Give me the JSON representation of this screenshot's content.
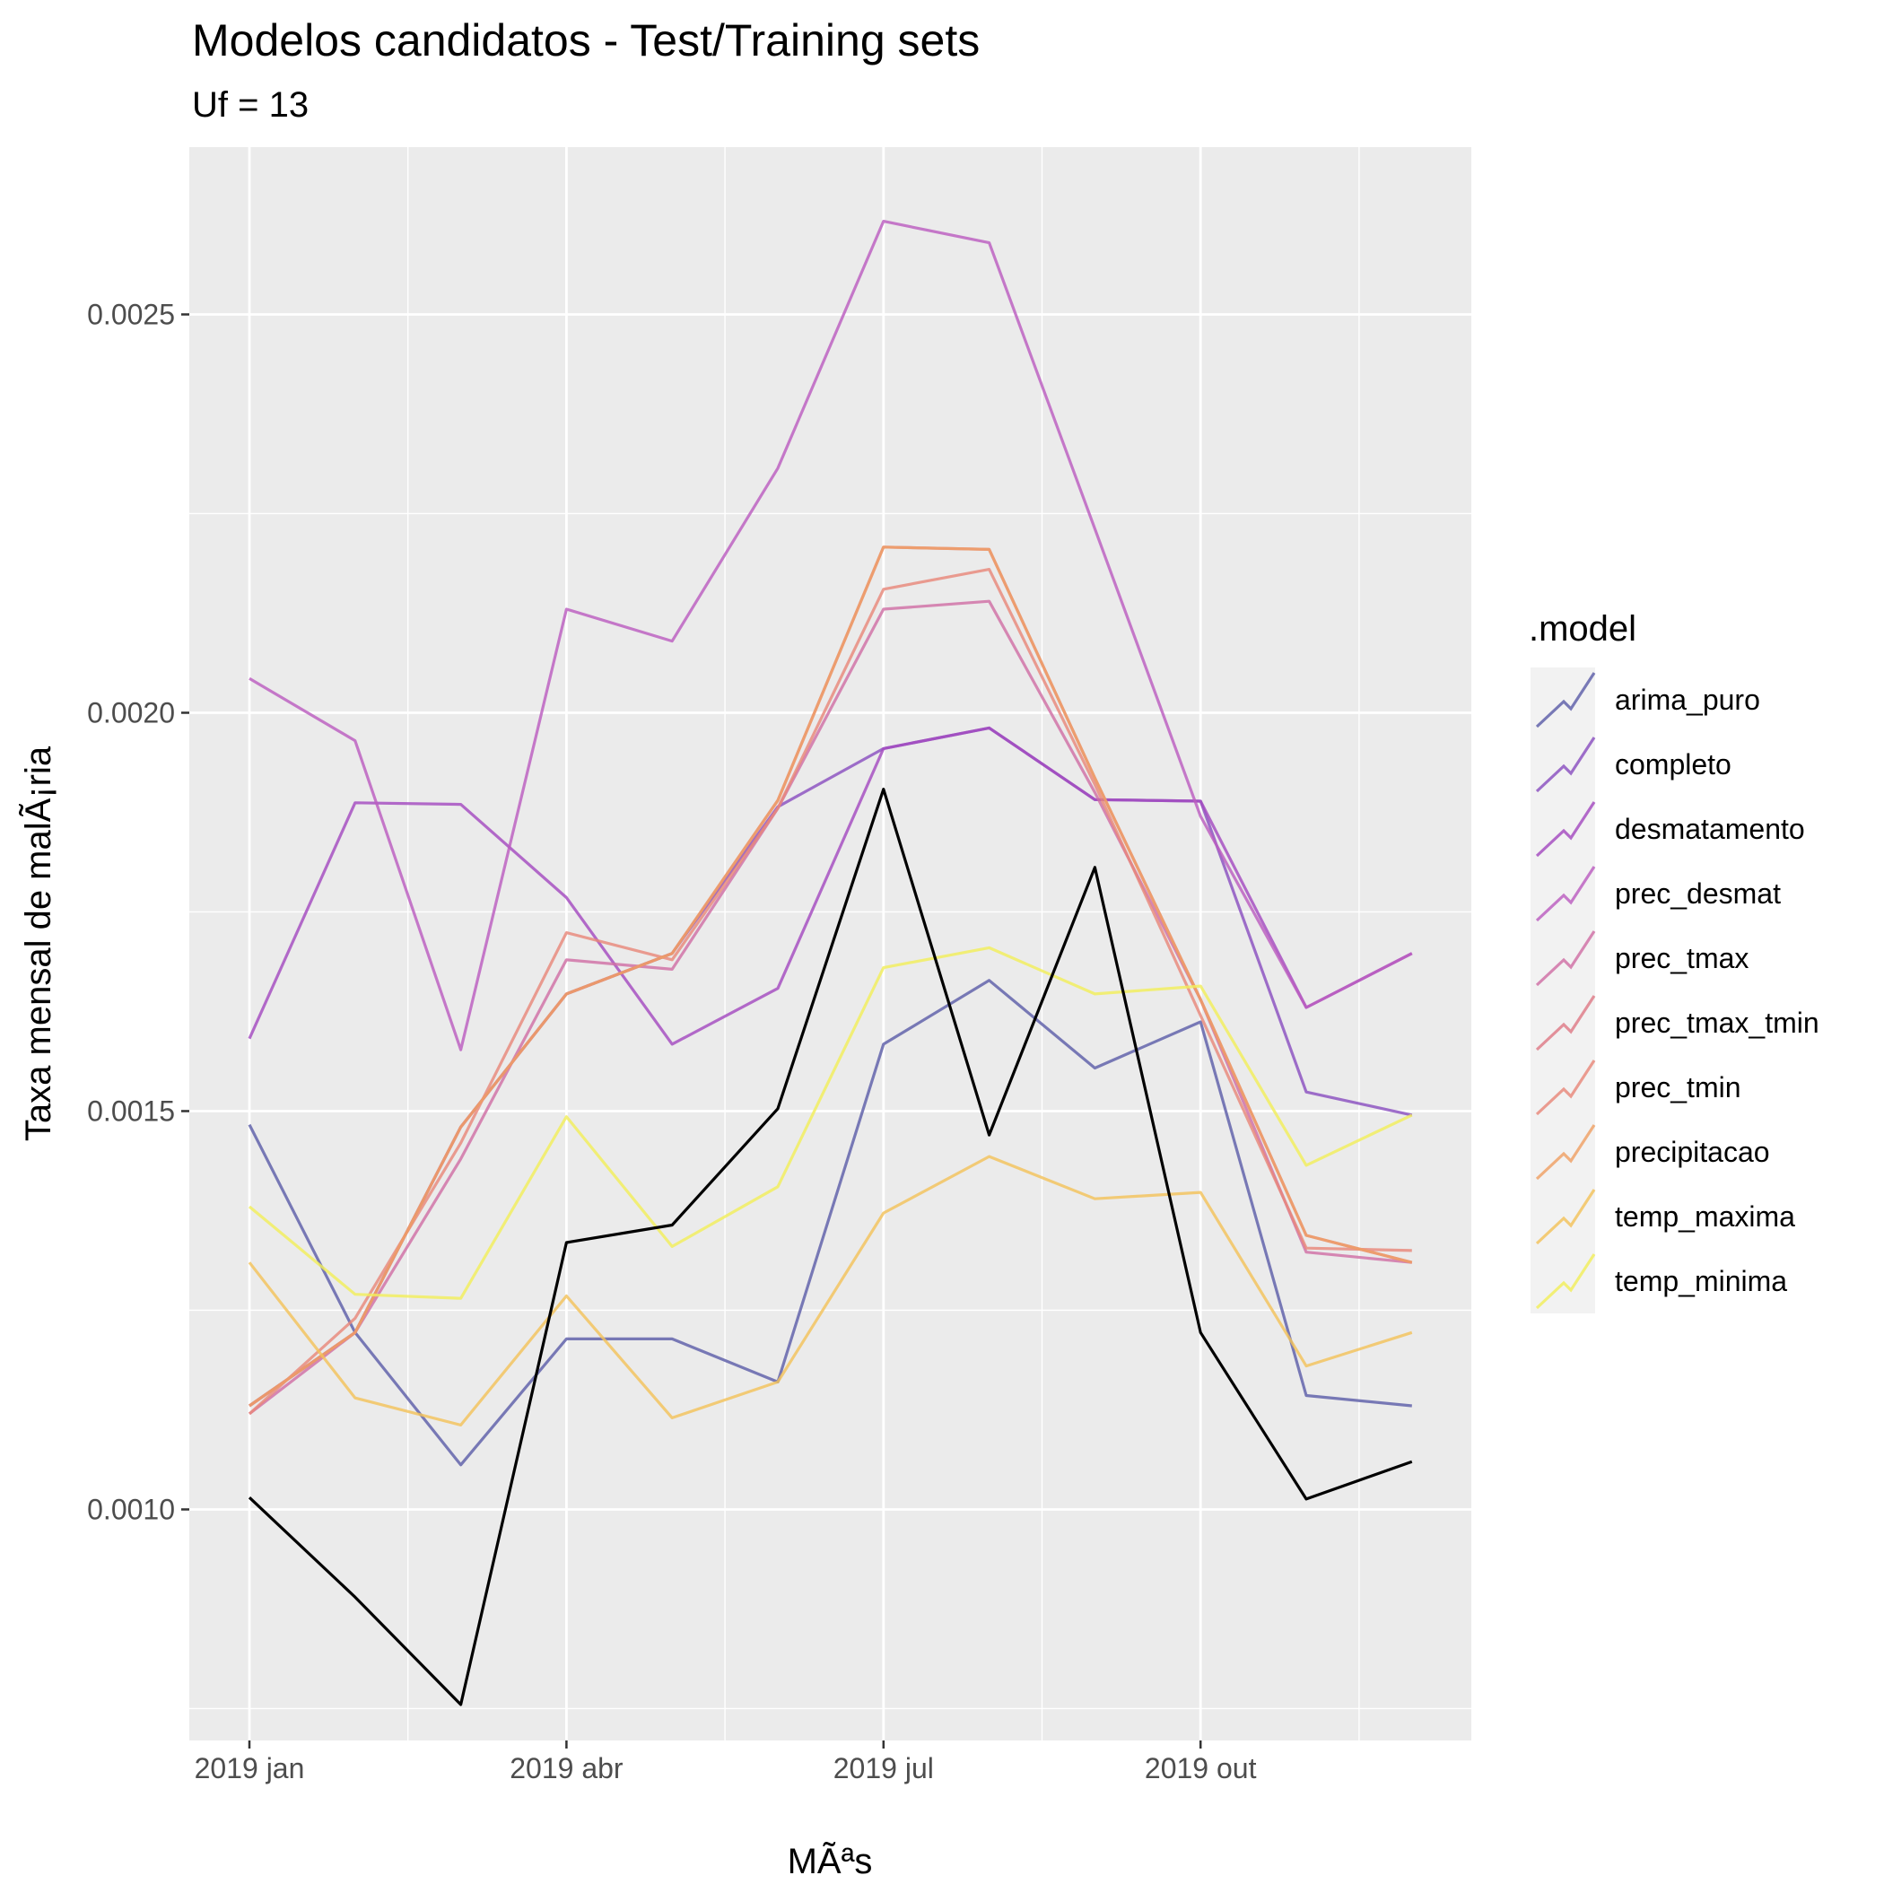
{
  "chart_data": {
    "type": "line",
    "title": "Modelos candidatos - Test/Training sets",
    "subtitle": "Uf = 13",
    "xlabel": "MÃªs",
    "ylabel": "Taxa mensal de malÃ¡ria",
    "x": [
      "2019-01",
      "2019-02",
      "2019-03",
      "2019-04",
      "2019-05",
      "2019-06",
      "2019-07",
      "2019-08",
      "2019-09",
      "2019-10",
      "2019-11",
      "2019-12"
    ],
    "x_ticks": [
      "2019 jan",
      "2019 abr",
      "2019 jul",
      "2019 out"
    ],
    "y_ticks": [
      "0.0010",
      "0.0015",
      "0.0020",
      "0.0025"
    ],
    "ylim": [
      0.00071,
      0.00271
    ],
    "grid": true,
    "legend": {
      "title": ".model",
      "position": "right"
    },
    "actual": {
      "color": "#000000",
      "values": [
        0.001015,
        0.00089,
        0.000755,
        0.001335,
        0.001357,
        0.001503,
        0.001904,
        0.00147,
        0.001806,
        0.001222,
        0.001013,
        0.00106
      ]
    },
    "series": [
      {
        "name": "arima_puro",
        "color": "#5d5ea8",
        "values": [
          0.001483,
          0.001222,
          0.001056,
          0.001214,
          0.001214,
          0.00116,
          0.001584,
          0.001664,
          0.001554,
          0.001612,
          0.001143,
          0.00113
        ]
      },
      {
        "name": "completo",
        "color": "#8a4fc0",
        "values": [
          0.00113,
          0.001222,
          0.00148,
          0.001647,
          0.001698,
          0.001882,
          0.001955,
          0.001981,
          0.001891,
          0.001889,
          0.001524,
          0.001495
        ]
      },
      {
        "name": "desmatamento",
        "color": "#a34bc0",
        "values": [
          0.001591,
          0.001887,
          0.001885,
          0.001768,
          0.001584,
          0.001654,
          0.001955,
          0.001981,
          0.001891,
          0.001889,
          0.00163,
          0.001698
        ]
      },
      {
        "name": "prec_desmat",
        "color": "#bb5dbf",
        "values": [
          0.002043,
          0.001965,
          0.001577,
          0.00213,
          0.00209,
          0.002307,
          0.002617,
          0.00259,
          0.002231,
          0.00187,
          0.00163,
          0.001698
        ]
      },
      {
        "name": "prec_tmax",
        "color": "#cf6fa5",
        "values": [
          0.00112,
          0.001222,
          0.00144,
          0.00169,
          0.001678,
          0.00188,
          0.00213,
          0.00214,
          0.0019,
          0.00164,
          0.001323,
          0.00131
        ]
      },
      {
        "name": "prec_tmax_tmin",
        "color": "#de7a86",
        "values": [
          0.00113,
          0.001222,
          0.00148,
          0.001647,
          0.001698,
          0.00189,
          0.002208,
          0.002205,
          0.001918,
          0.00164,
          0.001344,
          0.00131
        ]
      },
      {
        "name": "prec_tmin",
        "color": "#e8887a",
        "values": [
          0.00112,
          0.00124,
          0.00146,
          0.001724,
          0.00169,
          0.00188,
          0.002155,
          0.00218,
          0.00191,
          0.00162,
          0.001328,
          0.001325
        ]
      },
      {
        "name": "precipitacao",
        "color": "#efa064",
        "values": [
          0.00113,
          0.001222,
          0.00148,
          0.001647,
          0.001698,
          0.00189,
          0.002208,
          0.002205,
          0.001918,
          0.00164,
          0.001344,
          0.00131
        ]
      },
      {
        "name": "temp_maxima",
        "color": "#f3c25a",
        "values": [
          0.00131,
          0.00114,
          0.001106,
          0.001268,
          0.001115,
          0.00116,
          0.001372,
          0.001443,
          0.00139,
          0.001398,
          0.00118,
          0.001222
        ]
      },
      {
        "name": "temp_minima",
        "color": "#f2ee5a",
        "values": [
          0.00138,
          0.00127,
          0.001265,
          0.001493,
          0.00133,
          0.001405,
          0.00168,
          0.001705,
          0.001647,
          0.001657,
          0.001432,
          0.001495
        ]
      }
    ]
  }
}
